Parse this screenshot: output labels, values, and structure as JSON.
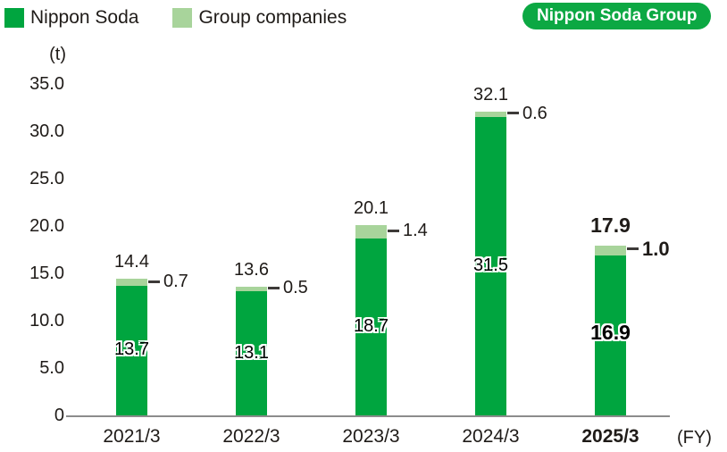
{
  "legend": {
    "items": [
      {
        "label": "Nippon Soda",
        "color": "#00a53f"
      },
      {
        "label": "Group companies",
        "color": "#a8d49b"
      }
    ]
  },
  "badge": {
    "label": "Nippon Soda Group",
    "bg": "#0ca843",
    "text_color": "#ffffff"
  },
  "unit_label": "(t)",
  "fy_label": "(FY)",
  "colors": {
    "bar_dark_green": "#00a53f",
    "bar_light_green": "#a8d49b",
    "badge_green": "#0ca843",
    "axis_line_gray": "#8c8c8c",
    "text": "#1f1b18"
  },
  "y_axis": {
    "ticks": [
      "35.0",
      "30.0",
      "25.0",
      "20.0",
      "15.0",
      "10.0",
      "5.0",
      "0"
    ],
    "min": 0,
    "max": 35
  },
  "chart_data": {
    "type": "bar",
    "stacked": true,
    "title": "",
    "categories": [
      "2021/3",
      "2022/3",
      "2023/3",
      "2024/3",
      "2025/3"
    ],
    "series": [
      {
        "name": "Nippon Soda",
        "values": [
          13.7,
          13.1,
          18.7,
          31.5,
          16.9
        ],
        "color": "#00a53f"
      },
      {
        "name": "Group companies",
        "values": [
          0.7,
          0.5,
          1.4,
          0.6,
          1.0
        ],
        "color": "#a8d49b"
      }
    ],
    "totals": [
      14.4,
      13.6,
      20.1,
      32.1,
      17.9
    ],
    "ylabel": "(t)",
    "xlabel": "(FY)",
    "ylim": [
      0,
      35
    ],
    "grid": false,
    "legend_position": "top-left",
    "highlight_category": "2025/3"
  }
}
